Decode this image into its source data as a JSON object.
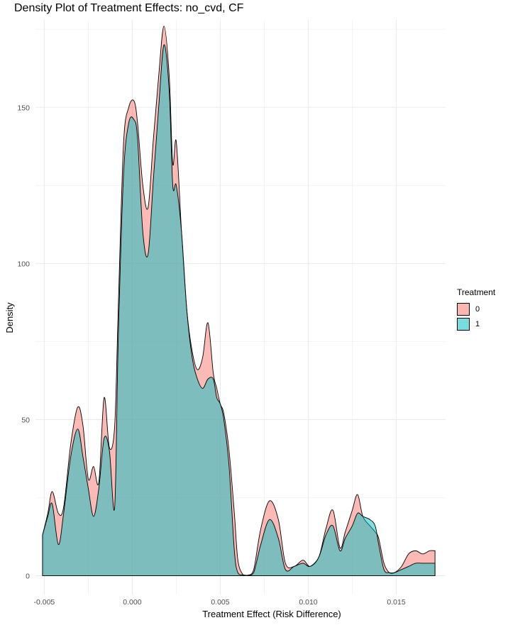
{
  "chart_data": {
    "type": "area",
    "title": "Density Plot of Treatment Effects: no_cvd, CF",
    "xlabel": "Treatment Effect (Risk Difference)",
    "ylabel": "Density",
    "xlim": [
      -0.0055,
      0.0178
    ],
    "ylim": [
      -6,
      178
    ],
    "x_ticks": [
      -0.005,
      0.0,
      0.005,
      0.01,
      0.015
    ],
    "x_tick_labels": [
      "-0.005",
      "0.000",
      "0.005",
      "0.010",
      "0.015"
    ],
    "y_ticks": [
      0,
      50,
      100,
      150
    ],
    "y_tick_labels": [
      "0",
      "50",
      "100",
      "150"
    ],
    "grid": true,
    "legend": {
      "title": "Treatment",
      "position": "right"
    },
    "series": [
      {
        "name": "0",
        "color": "#F8766D",
        "x": [
          -0.0051,
          -0.0048,
          -0.00455,
          -0.0042,
          -0.0039,
          -0.0035,
          -0.0031,
          -0.0028,
          -0.0025,
          -0.0022,
          -0.0019,
          -0.0016,
          -0.0013,
          -0.001,
          -0.0008,
          -0.0005,
          -0.0002,
          0.0001,
          0.0003,
          0.0006,
          0.0009,
          0.0012,
          0.0015,
          0.0018,
          0.0021,
          0.0023,
          0.0025,
          0.0028,
          0.0031,
          0.0034,
          0.0037,
          0.004,
          0.0043,
          0.0046,
          0.0048,
          0.005,
          0.0052,
          0.0055,
          0.0058,
          0.006,
          0.0063,
          0.0066,
          0.0069,
          0.0073,
          0.0078,
          0.0083,
          0.0087,
          0.0092,
          0.0097,
          0.0101,
          0.0106,
          0.011,
          0.0114,
          0.0118,
          0.0121,
          0.0125,
          0.0128,
          0.0131,
          0.0135,
          0.0138,
          0.014,
          0.0143,
          0.0146,
          0.0149,
          0.0153,
          0.0157,
          0.0161,
          0.0165,
          0.0169,
          0.0172
        ],
        "values": [
          13,
          20,
          27,
          20,
          22,
          42,
          54,
          48,
          31,
          35,
          30,
          57,
          41,
          48,
          85,
          138,
          150,
          152,
          145,
          125,
          118,
          140,
          160,
          176,
          160,
          132,
          139,
          110,
          85,
          72,
          66,
          70,
          81,
          65,
          60,
          55,
          52,
          40,
          20,
          5,
          0.3,
          0.2,
          2,
          15,
          24,
          18,
          4,
          3,
          5,
          3,
          6,
          15,
          21,
          9,
          14,
          21,
          26,
          19,
          16,
          14,
          12,
          4,
          1,
          1,
          3,
          7,
          8,
          7,
          8,
          8
        ]
      },
      {
        "name": "1",
        "color": "#00BFC4",
        "x": [
          -0.0051,
          -0.0048,
          -0.00455,
          -0.0042,
          -0.0039,
          -0.0035,
          -0.0031,
          -0.0028,
          -0.0025,
          -0.0022,
          -0.0019,
          -0.0016,
          -0.0013,
          -0.001,
          -0.0008,
          -0.0005,
          -0.0002,
          0.0001,
          0.0003,
          0.0006,
          0.0009,
          0.0012,
          0.0015,
          0.0018,
          0.0021,
          0.0023,
          0.0025,
          0.0028,
          0.0031,
          0.0034,
          0.0037,
          0.004,
          0.0043,
          0.0046,
          0.0048,
          0.005,
          0.0052,
          0.0055,
          0.0058,
          0.006,
          0.0063,
          0.0066,
          0.0069,
          0.0073,
          0.0078,
          0.0083,
          0.0087,
          0.0092,
          0.0097,
          0.0101,
          0.0106,
          0.011,
          0.0114,
          0.0118,
          0.0121,
          0.0125,
          0.0128,
          0.0131,
          0.0135,
          0.0138,
          0.014,
          0.0143,
          0.0146,
          0.0149,
          0.0153,
          0.0157,
          0.0161,
          0.0165,
          0.0169,
          0.0172
        ],
        "values": [
          13,
          19,
          23,
          10,
          20,
          38,
          47,
          38,
          28,
          19,
          28,
          44,
          40,
          22,
          75,
          128,
          145,
          146,
          140,
          110,
          103,
          127,
          150,
          170,
          155,
          125,
          125,
          110,
          85,
          70,
          63,
          60,
          63,
          63,
          57,
          55,
          50,
          35,
          8,
          1,
          0.3,
          0.2,
          1,
          10,
          18,
          12,
          2,
          3,
          4,
          3,
          6,
          13,
          16,
          8,
          12,
          16,
          20,
          19,
          18,
          16,
          10,
          2,
          1,
          1,
          2,
          3,
          4,
          4,
          4,
          4
        ]
      }
    ]
  }
}
